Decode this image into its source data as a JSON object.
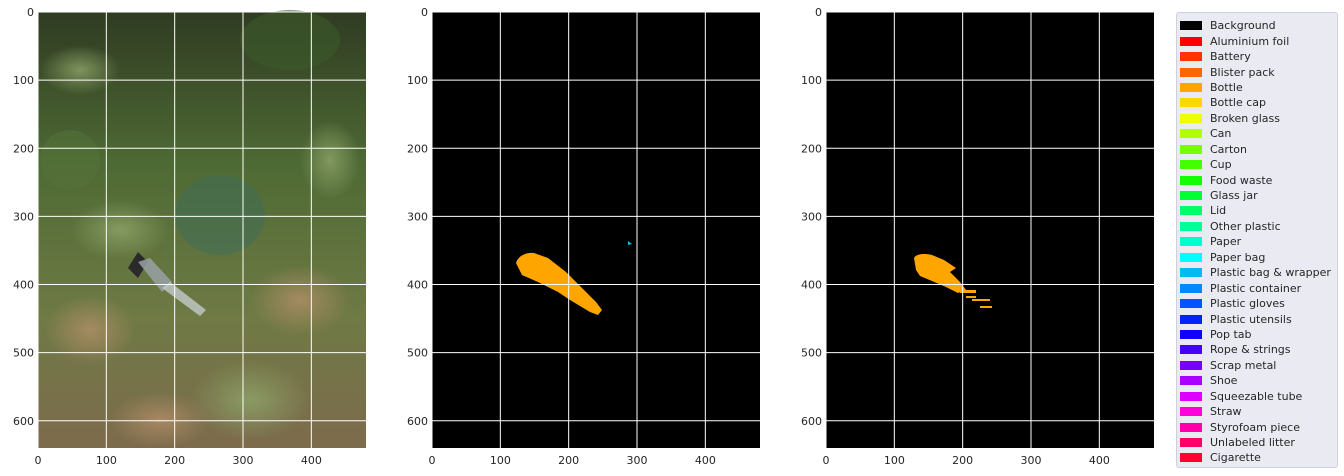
{
  "panels": [
    {
      "kind": "photo"
    },
    {
      "kind": "mask"
    },
    {
      "kind": "mask"
    }
  ],
  "axes": {
    "x_range": [
      0,
      480
    ],
    "y_range": [
      0,
      640
    ],
    "x_ticks": [
      0,
      100,
      200,
      300,
      400
    ],
    "y_ticks": [
      0,
      100,
      200,
      300,
      400,
      500,
      600
    ],
    "grid": true
  },
  "legend": {
    "placement": "right",
    "entries": [
      {
        "label": "Background",
        "color": "#000000"
      },
      {
        "label": "Aluminium foil",
        "color": "#ff0000"
      },
      {
        "label": "Battery",
        "color": "#ff3300"
      },
      {
        "label": "Blister pack",
        "color": "#ff6600"
      },
      {
        "label": "Bottle",
        "color": "#ffa500"
      },
      {
        "label": "Bottle cap",
        "color": "#ffd700"
      },
      {
        "label": "Broken glass",
        "color": "#eeff00"
      },
      {
        "label": "Can",
        "color": "#b2ff00"
      },
      {
        "label": "Carton",
        "color": "#77ff00"
      },
      {
        "label": "Cup",
        "color": "#44ff00"
      },
      {
        "label": "Food waste",
        "color": "#11ff00"
      },
      {
        "label": "Glass jar",
        "color": "#00ff33"
      },
      {
        "label": "Lid",
        "color": "#00ff66"
      },
      {
        "label": "Other plastic",
        "color": "#00ff99"
      },
      {
        "label": "Paper",
        "color": "#00ffcc"
      },
      {
        "label": "Paper bag",
        "color": "#00ffff"
      },
      {
        "label": "Plastic bag & wrapper",
        "color": "#00bbee"
      },
      {
        "label": "Plastic container",
        "color": "#0088ff"
      },
      {
        "label": "Plastic gloves",
        "color": "#0055ff"
      },
      {
        "label": "Plastic utensils",
        "color": "#0022ff"
      },
      {
        "label": "Pop tab",
        "color": "#1100ff"
      },
      {
        "label": "Rope & strings",
        "color": "#4400ff"
      },
      {
        "label": "Scrap metal",
        "color": "#7700ff"
      },
      {
        "label": "Shoe",
        "color": "#aa00ff"
      },
      {
        "label": "Squeezable tube",
        "color": "#dd00ff"
      },
      {
        "label": "Straw",
        "color": "#ff00dd"
      },
      {
        "label": "Styrofoam piece",
        "color": "#ff00aa"
      },
      {
        "label": "Unlabeled litter",
        "color": "#ff0066"
      },
      {
        "label": "Cigarette",
        "color": "#ff0033"
      }
    ]
  },
  "colors": {
    "bottle": "#ffa500",
    "plastic_bag_wrapper": "#00bbee",
    "mask_background": "#000000",
    "grid": "#ffffff"
  }
}
